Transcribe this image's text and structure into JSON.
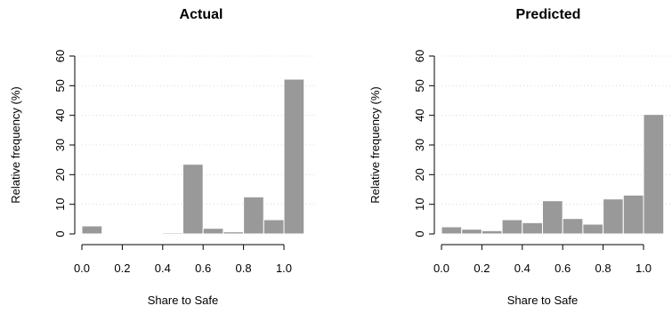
{
  "chart_data": [
    {
      "type": "bar",
      "title": "Actual",
      "xlabel": "Share to Safe",
      "ylabel": "Relative frequency (%)",
      "bin_edges": [
        0.0,
        0.1,
        0.2,
        0.3,
        0.4,
        0.5,
        0.6,
        0.7,
        0.8,
        0.9,
        1.0,
        1.1
      ],
      "values": [
        2.7,
        0.2,
        0.2,
        0.2,
        0.4,
        23.5,
        1.9,
        0.7,
        12.5,
        4.8,
        52.2
      ],
      "x_ticks": [
        "0.0",
        "0.2",
        "0.4",
        "0.6",
        "0.8",
        "1.0"
      ],
      "y_ticks": [
        "0",
        "10",
        "20",
        "30",
        "40",
        "50",
        "60"
      ],
      "ylim": [
        0,
        60
      ],
      "grid": true
    },
    {
      "type": "bar",
      "title": "Predicted",
      "xlabel": "Share to Safe",
      "ylabel": "Relative frequency (%)",
      "bin_edges": [
        0.0,
        0.1,
        0.2,
        0.3,
        0.4,
        0.5,
        0.6,
        0.7,
        0.8,
        0.9,
        1.0,
        1.1
      ],
      "values": [
        2.4,
        1.6,
        1.1,
        4.8,
        3.8,
        11.2,
        5.2,
        3.3,
        11.8,
        13.1,
        40.3
      ],
      "x_ticks": [
        "0.0",
        "0.2",
        "0.4",
        "0.6",
        "0.8",
        "1.0"
      ],
      "y_ticks": [
        "0",
        "10",
        "20",
        "30",
        "40",
        "50",
        "60"
      ],
      "ylim": [
        0,
        60
      ],
      "grid": true
    }
  ]
}
